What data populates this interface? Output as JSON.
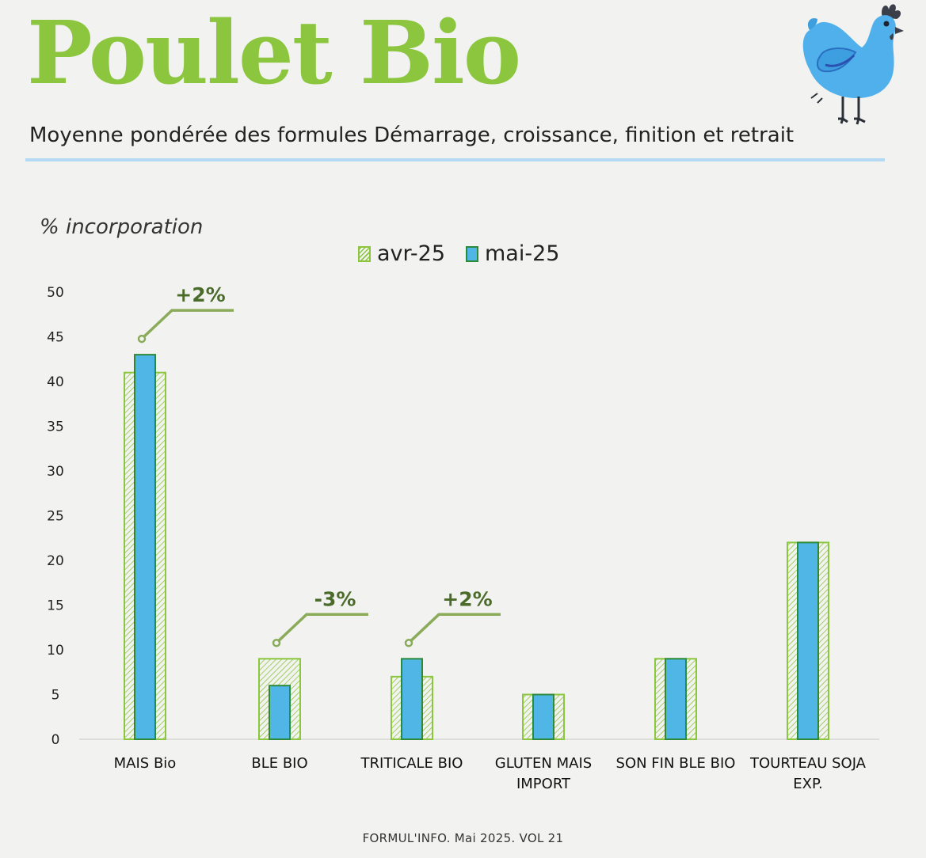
{
  "header": {
    "title": "Poulet Bio",
    "subtitle": "Moyenne pondérée des formules Démarrage, croissance, finition et retrait"
  },
  "footer": {
    "text": "FORMUL'INFO. Mai 2025. VOL 21"
  },
  "colors": {
    "title": "#8cc63f",
    "avr_outline": "#8cc63f",
    "mai_fill": "#4fb6e6",
    "mai_outline": "#2c8a3a",
    "annotation": "#8aab5a",
    "annotation_text": "#4a6b2a",
    "rule": "#b3daf2"
  },
  "icons": {
    "mascot": "blue-chicken-icon"
  },
  "chart_data": {
    "type": "bar",
    "ylabel": "% incorporation",
    "xlabel": "",
    "ylim": [
      0,
      50
    ],
    "yticks": [
      0,
      5,
      10,
      15,
      20,
      25,
      30,
      35,
      40,
      45,
      50
    ],
    "grid": false,
    "legend_position": "top-center",
    "categories": [
      [
        "MAIS Bio"
      ],
      [
        "BLE BIO"
      ],
      [
        "TRITICALE BIO"
      ],
      [
        "GLUTEN MAIS",
        "IMPORT"
      ],
      [
        "SON FIN BLE BIO"
      ],
      [
        "TOURTEAU SOJA",
        "EXP."
      ]
    ],
    "series": [
      {
        "name": "avr-25",
        "values": [
          41,
          9,
          7,
          5,
          9,
          22
        ]
      },
      {
        "name": "mai-25",
        "values": [
          43,
          6,
          9,
          5,
          9,
          22
        ]
      }
    ],
    "annotations": [
      {
        "category_index": 0,
        "text": "+2%"
      },
      {
        "category_index": 1,
        "text": "-3%"
      },
      {
        "category_index": 2,
        "text": "+2%"
      }
    ]
  }
}
